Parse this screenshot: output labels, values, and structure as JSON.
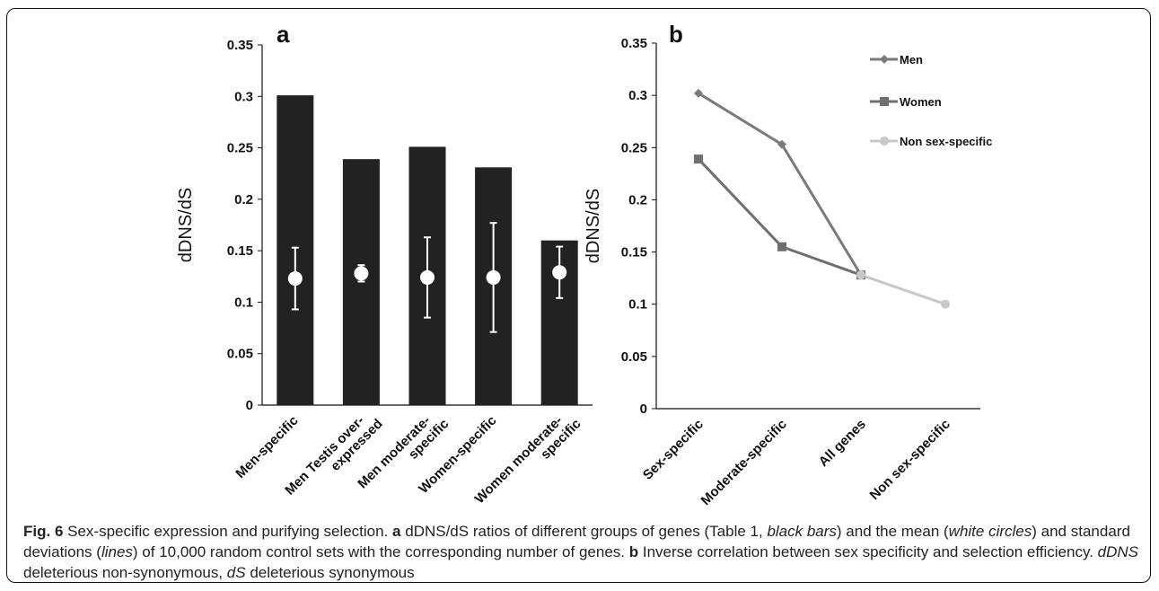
{
  "chart_data": [
    {
      "type": "bar",
      "panel_label": "a",
      "ylabel": "dDNS/dS",
      "ylim": [
        0,
        0.35
      ],
      "yticks": [
        "0",
        "0.05",
        "0.1",
        "0.15",
        "0.2",
        "0.25",
        "0.3",
        "0.35"
      ],
      "categories": [
        [
          "Men-specific"
        ],
        [
          "Men Testis over-",
          "expressed"
        ],
        [
          "Men moderate-",
          "specific"
        ],
        [
          "Women-specific"
        ],
        [
          "Women moderate-",
          "specific"
        ]
      ],
      "values": [
        0.301,
        0.239,
        0.251,
        0.231,
        0.16
      ],
      "control_mean": [
        0.123,
        0.128,
        0.124,
        0.124,
        0.129
      ],
      "control_sd": [
        0.03,
        0.008,
        0.039,
        0.053,
        0.025
      ],
      "colors": {
        "bar": "#222222",
        "marker": "#ffffff"
      }
    },
    {
      "type": "line",
      "panel_label": "b",
      "ylabel": "dDNS/dS",
      "ylim": [
        0,
        0.35
      ],
      "yticks": [
        "0",
        "0.05",
        "0.1",
        "0.15",
        "0.2",
        "0.25",
        "0.3",
        "0.35"
      ],
      "categories": [
        "Sex-specific",
        "Moderate-specific",
        "All genes",
        "Non sex-specific"
      ],
      "legend_position": "top-right",
      "series": [
        {
          "name": "Men",
          "values": [
            0.302,
            0.253,
            0.128,
            null
          ],
          "color": "#7a7a7a",
          "marker": "diamond"
        },
        {
          "name": "Women",
          "values": [
            0.239,
            0.155,
            0.128,
            null
          ],
          "color": "#6f6f6f",
          "marker": "square"
        },
        {
          "name": "Non sex-specific",
          "values": [
            null,
            null,
            0.128,
            0.1
          ],
          "color": "#c8c8c8",
          "marker": "circle"
        }
      ]
    }
  ],
  "caption": {
    "fig_label": "Fig. 6",
    "t1": " Sex-specific expression and purifying selection. ",
    "a": "a",
    "t2": " dDNS/dS ratios of different groups of genes (Table 1, ",
    "i1": "black bars",
    "t3": ") and the mean (",
    "i2": "white circles",
    "t4": ") and standard deviations (",
    "i3": "lines",
    "t5": ") of 10,000 random control sets with the corresponding number of genes. ",
    "b": "b",
    "t6": " Inverse correlation between sex specificity and selection efficiency. ",
    "i4": "dDNS",
    "t7": " deleterious non-synonymous, ",
    "i5": "dS",
    "t8": " deleterious synonymous"
  }
}
